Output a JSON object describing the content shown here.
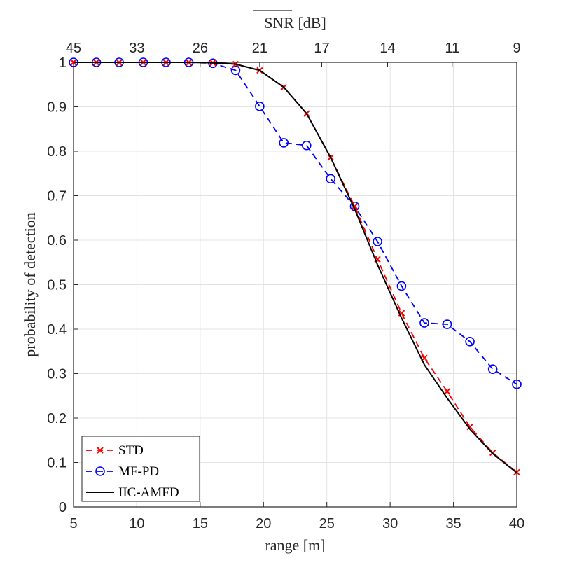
{
  "chart_data": {
    "type": "line",
    "xlabel": "range [m]",
    "ylabel": "probability of detection",
    "top_axis_label": "SNR [dB]",
    "xlim": [
      5,
      40
    ],
    "ylim": [
      0,
      1
    ],
    "grid": true,
    "legend_position": "bottom-left",
    "x_ticks": [
      5,
      10,
      15,
      20,
      25,
      30,
      35,
      40
    ],
    "x_tick_labels": [
      "5",
      "10",
      "15",
      "20",
      "25",
      "30",
      "35",
      "40"
    ],
    "y_ticks": [
      0,
      0.1,
      0.2,
      0.3,
      0.4,
      0.5,
      0.6,
      0.7,
      0.8,
      0.9,
      1
    ],
    "y_tick_labels": [
      "0",
      "0.1",
      "0.2",
      "0.3",
      "0.4",
      "0.5",
      "0.6",
      "0.7",
      "0.8",
      "0.9",
      "1"
    ],
    "top_ticks": [
      {
        "range": 5,
        "label": "45"
      },
      {
        "range": 10,
        "label": "33"
      },
      {
        "range": 15,
        "label": "26"
      },
      {
        "range": 19.7,
        "label": "21"
      },
      {
        "range": 24.6,
        "label": "17"
      },
      {
        "range": 29.8,
        "label": "14"
      },
      {
        "range": 34.9,
        "label": "11"
      },
      {
        "range": 40,
        "label": "9"
      }
    ],
    "series": [
      {
        "name": "STD",
        "color": "#ff0000",
        "line_style": "dashed",
        "marker": "x",
        "x": [
          5,
          6.8,
          8.6,
          10.5,
          12.3,
          14.1,
          16.0,
          17.8,
          19.7,
          21.6,
          23.4,
          25.3,
          27.2,
          29.0,
          30.9,
          32.7,
          34.5,
          36.3,
          38.1,
          40.0
        ],
        "y": [
          1,
          1,
          1,
          1,
          1,
          1,
          0.999,
          0.996,
          0.982,
          0.944,
          0.885,
          0.786,
          0.676,
          0.557,
          0.436,
          0.335,
          0.26,
          0.18,
          0.122,
          0.078
        ]
      },
      {
        "name": "MF-PD",
        "color": "#0000ff",
        "line_style": "dashed",
        "marker": "o",
        "x": [
          5,
          6.8,
          8.6,
          10.5,
          12.3,
          14.1,
          16.0,
          17.8,
          19.7,
          21.6,
          23.4,
          25.3,
          27.2,
          29.0,
          30.9,
          32.7,
          34.5,
          36.3,
          38.1,
          40.0
        ],
        "y": [
          1,
          1,
          1,
          1,
          1,
          1,
          0.998,
          0.982,
          0.901,
          0.819,
          0.813,
          0.738,
          0.676,
          0.597,
          0.497,
          0.414,
          0.411,
          0.372,
          0.31,
          0.276
        ]
      },
      {
        "name": "IIC-AMFD",
        "color": "#000000",
        "line_style": "solid",
        "marker": "none",
        "x": [
          5,
          6.8,
          8.6,
          10.5,
          12.3,
          14.1,
          16.0,
          17.8,
          19.7,
          21.6,
          23.4,
          25.3,
          27.2,
          29.0,
          30.9,
          32.7,
          34.5,
          36.3,
          38.1,
          40.0
        ],
        "y": [
          1,
          1,
          1,
          1,
          1,
          1,
          0.999,
          0.996,
          0.982,
          0.944,
          0.885,
          0.786,
          0.67,
          0.545,
          0.425,
          0.32,
          0.245,
          0.175,
          0.12,
          0.077
        ]
      }
    ]
  }
}
